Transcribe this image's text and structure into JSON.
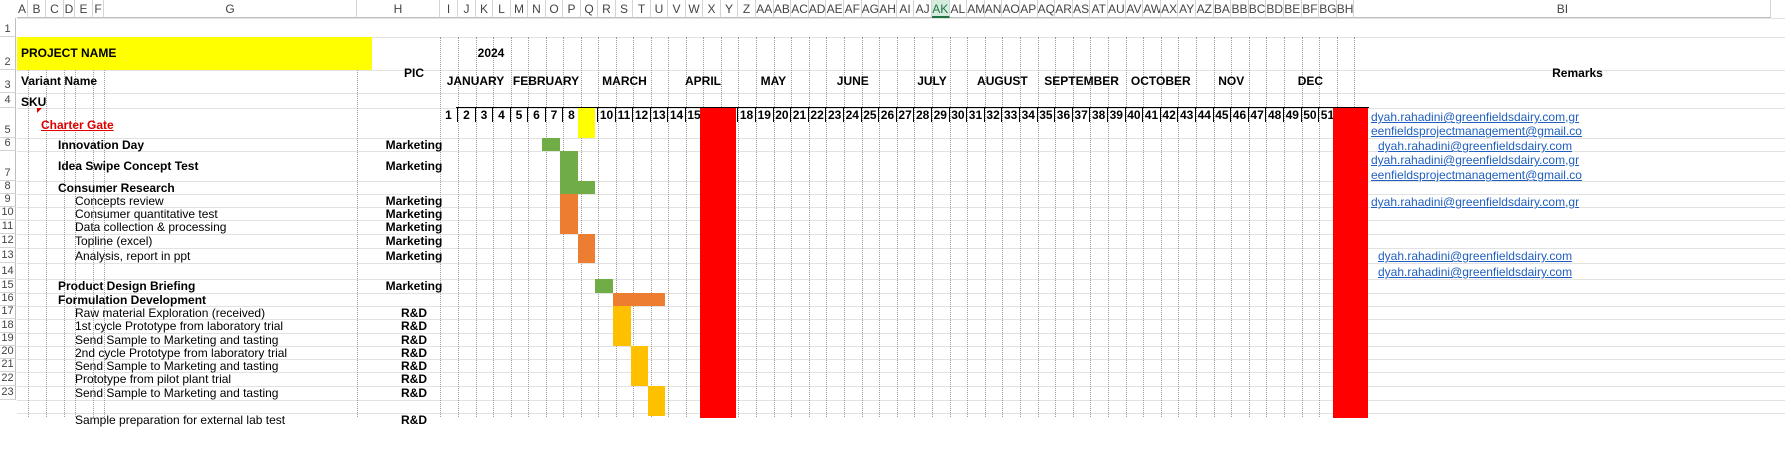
{
  "columns": [
    "A",
    "B",
    "C",
    "D",
    "E",
    "F",
    "G",
    "H",
    "I",
    "J",
    "K",
    "L",
    "M",
    "N",
    "O",
    "P",
    "Q",
    "R",
    "S",
    "T",
    "U",
    "V",
    "W",
    "X",
    "Y",
    "Z",
    "AA",
    "AB",
    "AC",
    "AD",
    "AE",
    "AF",
    "AG",
    "AH",
    "AI",
    "AJ",
    "AK",
    "AL",
    "AM",
    "AN",
    "AO",
    "AP",
    "AQ",
    "AR",
    "AS",
    "AT",
    "AU",
    "AV",
    "AW",
    "AX",
    "AY",
    "AZ",
    "BA",
    "BB",
    "BC",
    "BD",
    "BE",
    "BF",
    "BG",
    "BH",
    "BI"
  ],
  "selected_column": "AK",
  "rows": [
    "1",
    "2",
    "3",
    "4",
    "5",
    "6",
    "7",
    "8",
    "9",
    "10",
    "11",
    "12",
    "13",
    "14",
    "15",
    "16",
    "17",
    "18",
    "19",
    "20",
    "21",
    "22",
    "23"
  ],
  "header": {
    "project_name": "PROJECT NAME",
    "variant_name": "Variant Name",
    "sku": "SKU",
    "pic": "PIC",
    "year": "2024",
    "remarks": "Remarks"
  },
  "months": [
    "JANUARY",
    "FEBRUARY",
    "MARCH",
    "APRIL",
    "MAY",
    "JUNE",
    "JULY",
    "AUGUST",
    "SEPTEMBER",
    "OCTOBER",
    "NOV",
    "DEC"
  ],
  "weeks": [
    "1",
    "2",
    "3",
    "4",
    "5",
    "6",
    "7",
    "8",
    "9",
    "10",
    "11",
    "12",
    "13",
    "14",
    "15",
    "16",
    "17",
    "18",
    "19",
    "20",
    "21",
    "22",
    "23",
    "24",
    "25",
    "26",
    "27",
    "28",
    "29",
    "30",
    "31",
    "32",
    "33",
    "34",
    "35",
    "36",
    "37",
    "38",
    "39",
    "40",
    "41",
    "42",
    "43",
    "44",
    "45",
    "46",
    "47",
    "48",
    "49",
    "50",
    "51",
    "52"
  ],
  "tasks": [
    {
      "row": "5",
      "label": "Charter Gate",
      "pic": "",
      "style": "gate"
    },
    {
      "row": "6",
      "label": "Innovation Day",
      "pic": "Marketing",
      "style": "bold"
    },
    {
      "row": "7",
      "label": "Idea Swipe Concept Test",
      "pic": "Marketing",
      "style": "bold"
    },
    {
      "row": "8",
      "label": "Consumer Research",
      "pic": "",
      "style": "bold"
    },
    {
      "row": "9",
      "label": "Concepts review",
      "pic": "Marketing",
      "style": "sub"
    },
    {
      "row": "10",
      "label": "Consumer quantitative test",
      "pic": "Marketing",
      "style": "sub"
    },
    {
      "row": "11",
      "label": "Data collection & processing",
      "pic": "Marketing",
      "style": "sub"
    },
    {
      "row": "12",
      "label": "Topline (excel)",
      "pic": "Marketing",
      "style": "sub"
    },
    {
      "row": "13",
      "label": "Analysis, report in ppt",
      "pic": "Marketing",
      "style": "sub"
    },
    {
      "row": "14",
      "label": "",
      "pic": "",
      "style": "sub"
    },
    {
      "row": "15",
      "label": "Product Design Briefing",
      "pic": "Marketing",
      "style": "bold"
    },
    {
      "row": "16",
      "label": "Formulation Development",
      "pic": "",
      "style": "bold"
    },
    {
      "row": "17",
      "label": "Raw material Exploration (received)",
      "pic": "R&D",
      "style": "sub"
    },
    {
      "row": "18",
      "label": "1st cycle Prototype from laboratory trial",
      "pic": "R&D",
      "style": "sub"
    },
    {
      "row": "19",
      "label": "Send Sample to Marketing and tasting",
      "pic": "R&D",
      "style": "sub"
    },
    {
      "row": "20",
      "label": "2nd cycle Prototype from laboratory trial",
      "pic": "R&D",
      "style": "sub"
    },
    {
      "row": "21",
      "label": "Send Sample to Marketing and tasting",
      "pic": "R&D",
      "style": "sub"
    },
    {
      "row": "22",
      "label": "Prototype from pilot plant trial",
      "pic": "R&D",
      "style": "sub"
    },
    {
      "row": "23",
      "label": "Send Sample to Marketing and tasting",
      "pic": "R&D",
      "style": "sub"
    },
    {
      "row": "24",
      "label": "Sample preparation for external lab test",
      "pic": "R&D",
      "style": "sub"
    }
  ],
  "remarks": [
    {
      "text": "dyah.rahadini@greenfieldsdairy.com,gr"
    },
    {
      "text": "eenfieldsprojectmanagement@gmail.co"
    },
    {
      "text": "dyah.rahadini@greenfieldsdairy.com"
    },
    {
      "text": "dyah.rahadini@greenfieldsdairy.com,gr"
    },
    {
      "text": "eenfieldsprojectmanagement@gmail.co"
    },
    {
      "text": "dyah.rahadini@greenfieldsdairy.com,gr"
    },
    {
      "text": "dyah.rahadini@greenfieldsdairy.com"
    },
    {
      "text": "dyah.rahadini@greenfieldsdairy.com"
    }
  ],
  "colors": {
    "yellow": "#ffff00",
    "green": "#70ad47",
    "orange": "#ed7d31",
    "amber": "#ffc000",
    "red": "#ff0000",
    "link": "#1f5fbf",
    "selected_header": "#217346"
  }
}
